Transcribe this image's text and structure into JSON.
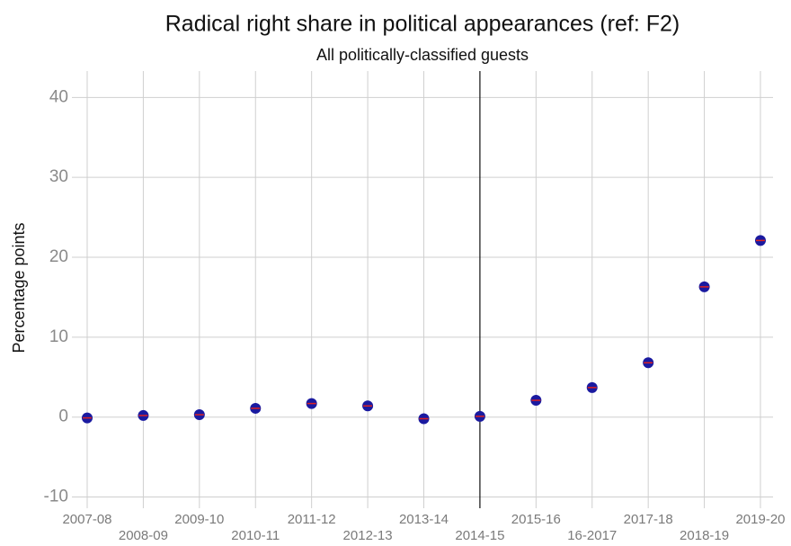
{
  "chart_data": {
    "type": "scatter",
    "title": "Radical right share in political appearances (ref: F2)",
    "subtitle": "All politically-classified guests",
    "y_label": "Percentage points",
    "categories": [
      "2007-08",
      "2008-09",
      "2009-10",
      "2010-11",
      "2011-12",
      "2012-13",
      "2013-14",
      "2014-15",
      "2015-16",
      "16-2017",
      "2017-18",
      "2018-19",
      "2019-20"
    ],
    "values": [
      -0.1,
      0.2,
      0.3,
      1.1,
      1.7,
      1.4,
      -0.2,
      0.1,
      2.1,
      3.7,
      6.8,
      16.3,
      22.1
    ],
    "color": "#1a1aa0",
    "ylim": [
      -11.4,
      43.3
    ],
    "yticks": [
      -10,
      0,
      10,
      20,
      30,
      40
    ],
    "grid": true,
    "vline": "2014-15"
  }
}
